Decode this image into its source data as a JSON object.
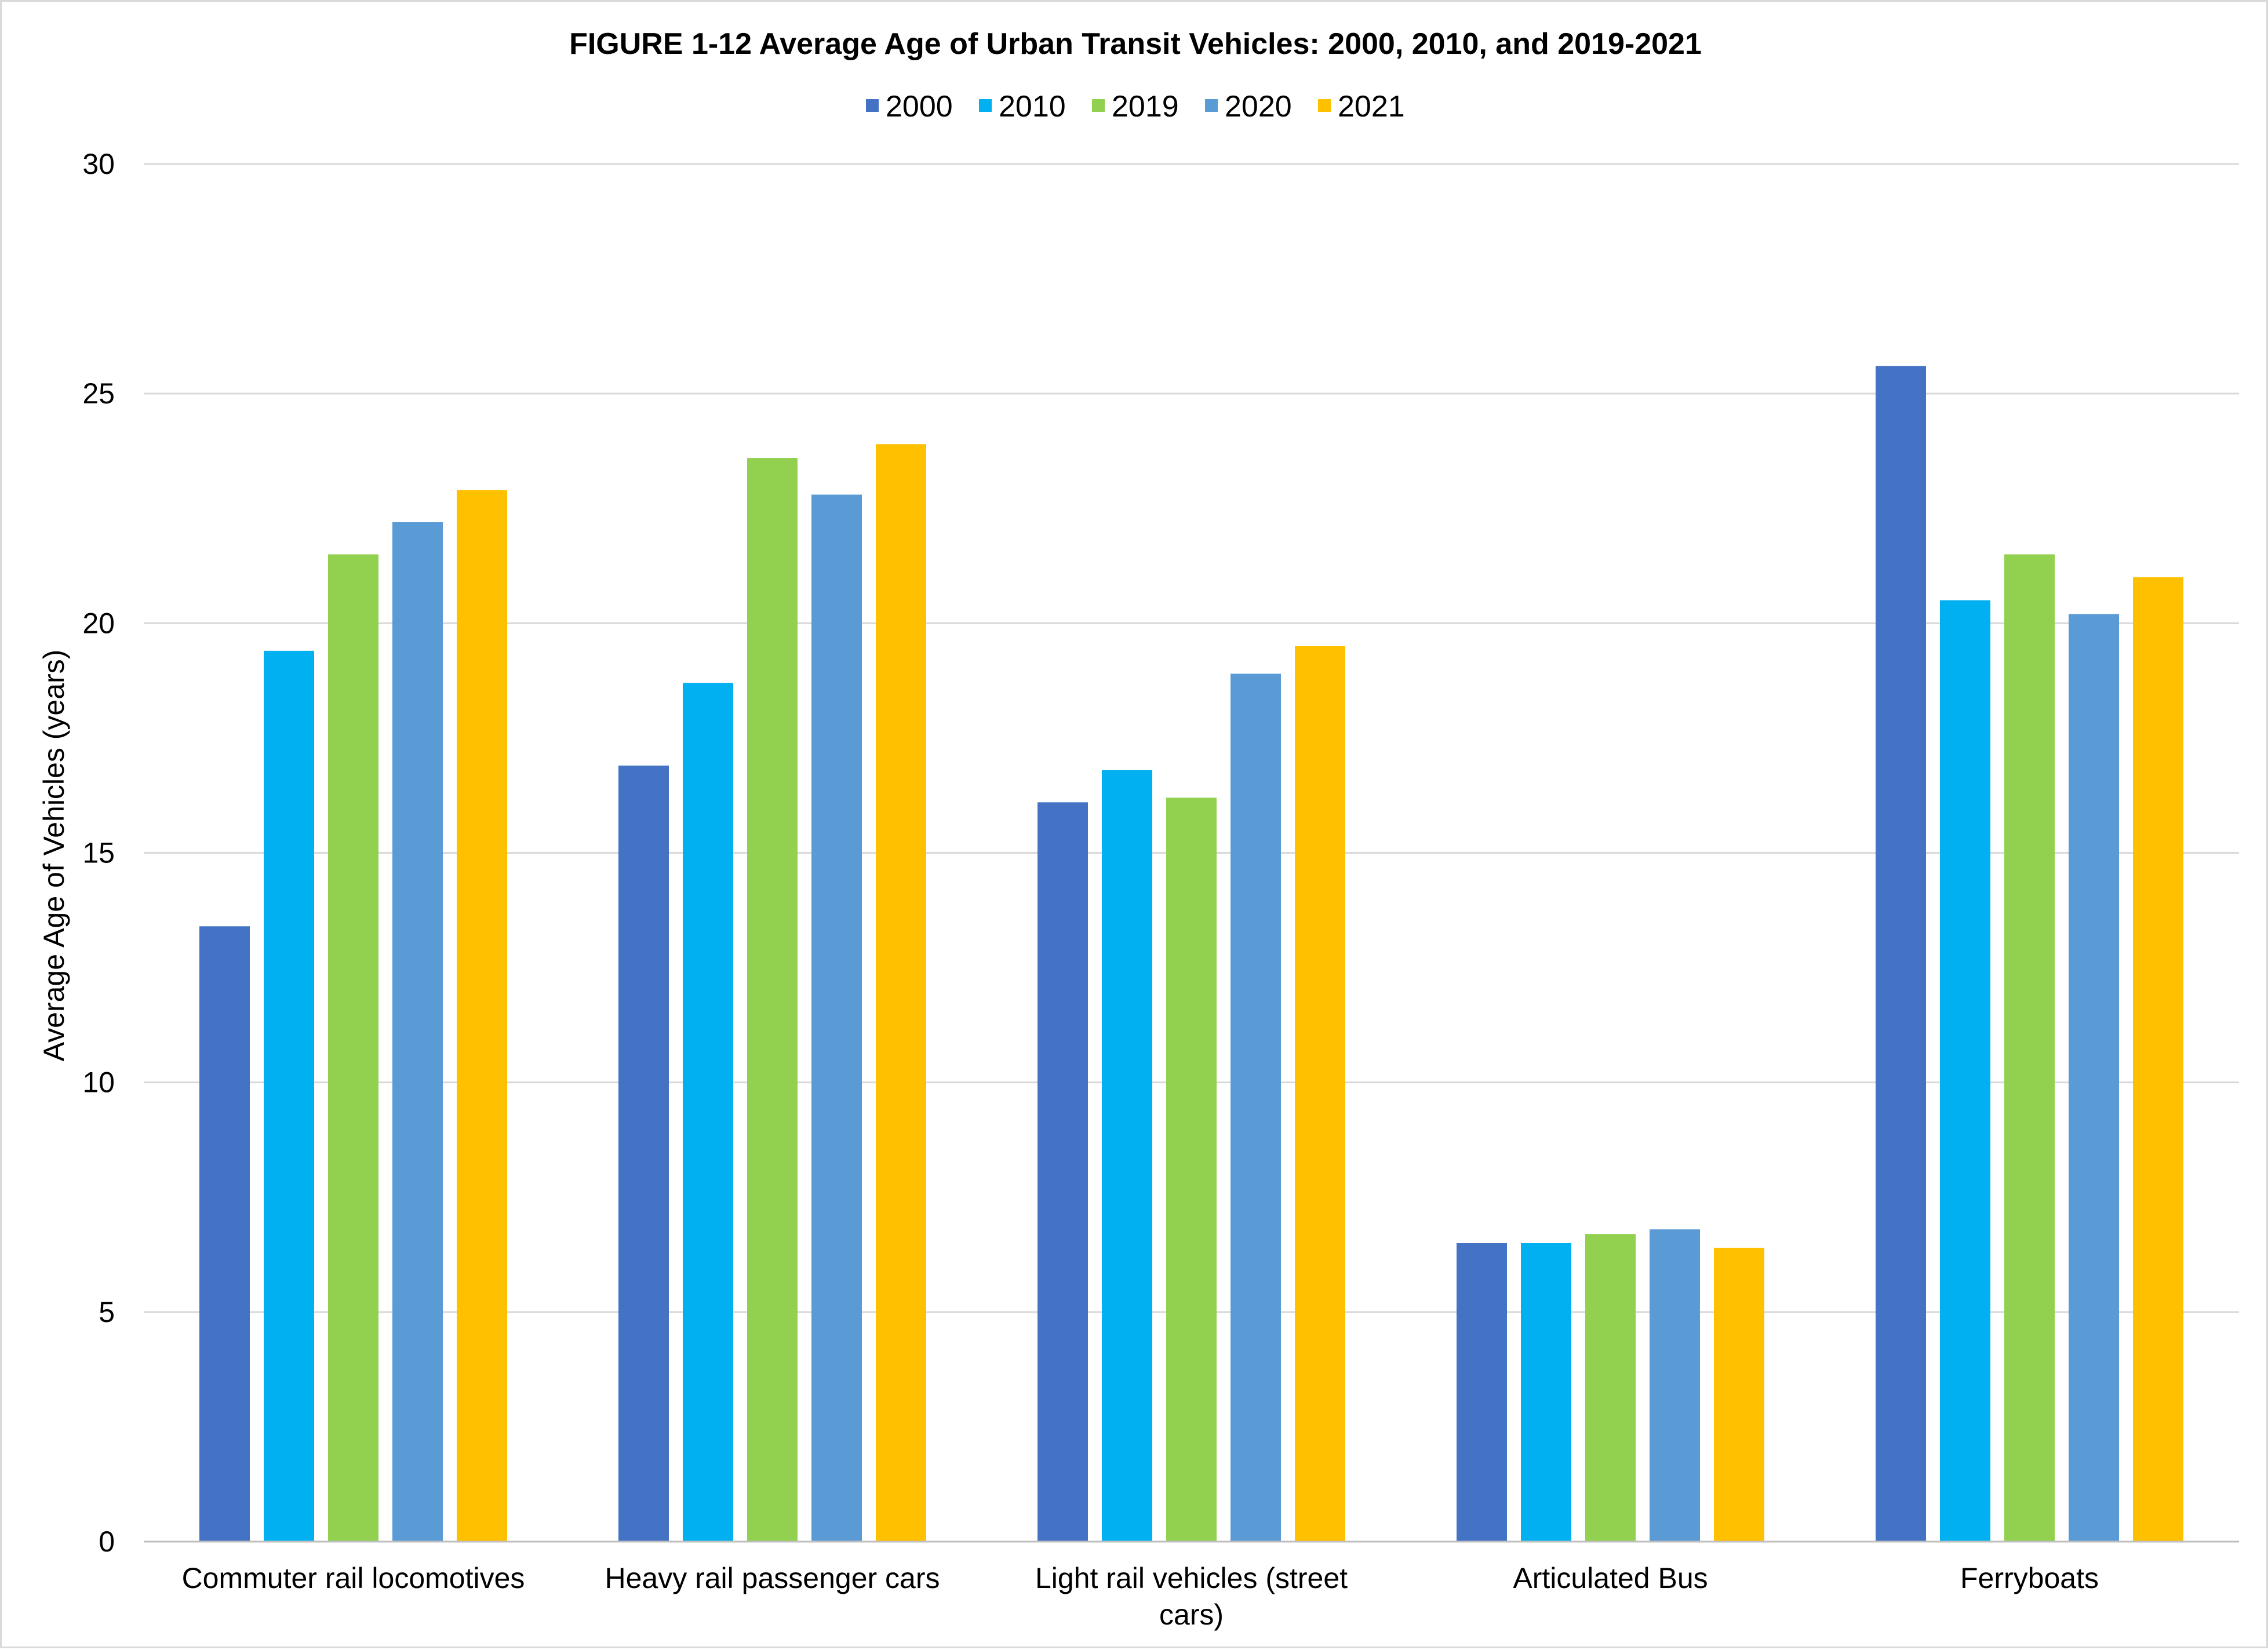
{
  "chart_data": {
    "type": "bar",
    "title": "FIGURE 1-12 Average Age of Urban Transit Vehicles: 2000, 2010, and 2019-2021",
    "xlabel": "",
    "ylabel": "Average Age of Vehicles (years)",
    "ylim": [
      0,
      30
    ],
    "yticks": [
      0,
      5,
      10,
      15,
      20,
      25,
      30
    ],
    "grid": true,
    "legend_position": "top",
    "categories": [
      [
        "Commuter rail locomotives"
      ],
      [
        "Heavy rail passenger cars"
      ],
      [
        "Light rail vehicles (street",
        "cars)"
      ],
      [
        "Articulated Bus"
      ],
      [
        "Ferryboats"
      ]
    ],
    "series": [
      {
        "name": "2000",
        "color": "#4472c4",
        "values": [
          13.4,
          16.9,
          16.1,
          6.5,
          25.6
        ]
      },
      {
        "name": "2010",
        "color": "#00b0f0",
        "values": [
          19.4,
          18.7,
          16.8,
          6.5,
          20.5
        ]
      },
      {
        "name": "2019",
        "color": "#92d050",
        "values": [
          21.5,
          23.6,
          16.2,
          6.7,
          21.5
        ]
      },
      {
        "name": "2020",
        "color": "#5b9bd5",
        "values": [
          22.2,
          22.8,
          18.9,
          6.8,
          20.2
        ]
      },
      {
        "name": "2021",
        "color": "#ffc000",
        "values": [
          22.9,
          23.9,
          19.5,
          6.4,
          21.0
        ]
      }
    ]
  },
  "colors": {
    "gridline": "#d9d9d9",
    "axis": "#bfbfbf",
    "frame": "#d9d9d9"
  }
}
